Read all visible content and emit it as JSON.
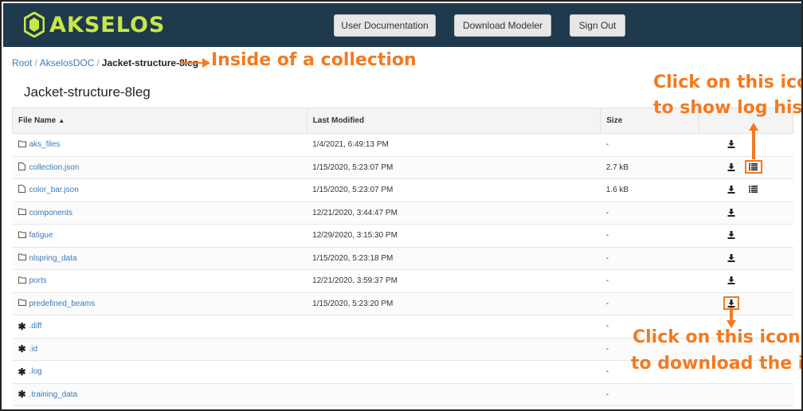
{
  "header": {
    "brand": "AKSELOS",
    "buttons": [
      "User Documentation",
      "Download Modeler",
      "Sign Out"
    ]
  },
  "breadcrumb": [
    "Root",
    "AkselosDOC",
    "Jacket-structure-8leg"
  ],
  "title": "Jacket-structure-8leg",
  "table": {
    "columns": [
      "File Name",
      "Last Modified",
      "Size"
    ],
    "rows": [
      {
        "name": "aks_files",
        "type": "folder",
        "modified": "1/4/2021, 6:49:13 PM",
        "size": "-",
        "log": false
      },
      {
        "name": "collection.json",
        "type": "file",
        "modified": "1/15/2020, 5:23:07 PM",
        "size": "2.7 kB",
        "log": true
      },
      {
        "name": "color_bar.json",
        "type": "file",
        "modified": "1/15/2020, 5:23:07 PM",
        "size": "1.6 kB",
        "log": true
      },
      {
        "name": "components",
        "type": "folder",
        "modified": "12/21/2020, 3:44:47 PM",
        "size": "-",
        "log": false
      },
      {
        "name": "fatigue",
        "type": "folder",
        "modified": "12/29/2020, 3:15:30 PM",
        "size": "-",
        "log": false
      },
      {
        "name": "nlspring_data",
        "type": "folder",
        "modified": "1/15/2020, 5:23:18 PM",
        "size": "-",
        "log": false
      },
      {
        "name": "ports",
        "type": "folder",
        "modified": "12/21/2020, 3:59:37 PM",
        "size": "-",
        "log": false
      },
      {
        "name": "predefined_beams",
        "type": "folder",
        "modified": "1/15/2020, 5:23:20 PM",
        "size": "-",
        "log": false
      },
      {
        "name": ".diff",
        "type": "special",
        "modified": "",
        "size": "-",
        "log": false
      },
      {
        "name": ".id",
        "type": "special",
        "modified": "",
        "size": "-",
        "log": false
      },
      {
        "name": ".log",
        "type": "special",
        "modified": "",
        "size": "-",
        "log": false
      },
      {
        "name": ".training_data",
        "type": "special",
        "modified": "",
        "size": "-",
        "log": false
      }
    ]
  },
  "annotations": {
    "collection": "Inside of a collection",
    "log_line1": "Click on this icon",
    "log_line2": "to show log history",
    "download_line1": "Click on this icon",
    "download_line2": "to download the item"
  },
  "colors": {
    "header_bg": "#1f3a4d",
    "brand": "#c8e64a",
    "link": "#3c7ab8",
    "annotation": "#f47a1f"
  }
}
